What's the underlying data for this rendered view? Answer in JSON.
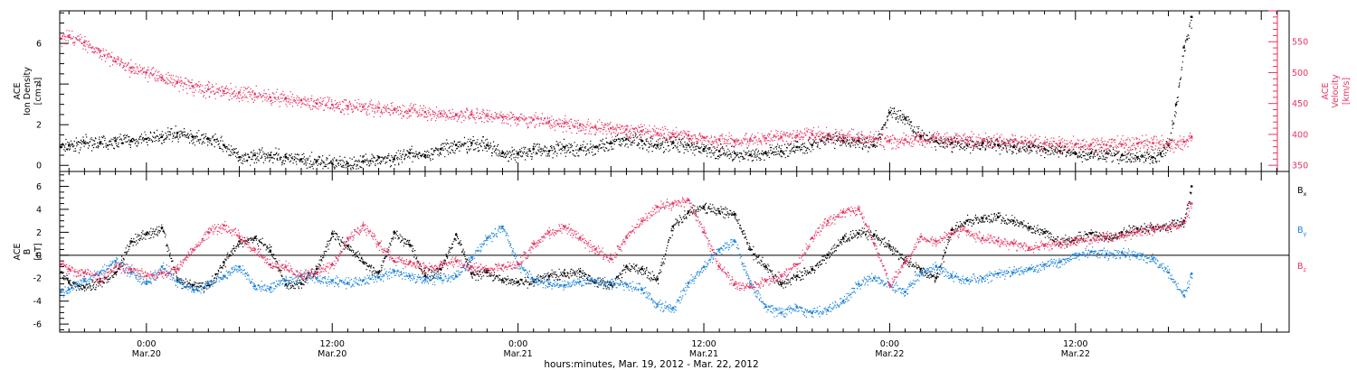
{
  "colors": {
    "black": "#000000",
    "pink": "#e8325f",
    "blue": "#1a82d8",
    "axis": "#000000"
  },
  "time_axis": {
    "tick_labels": [
      {
        "time": "0:00",
        "date": "Mar.20",
        "hour": 24
      },
      {
        "time": "12:00",
        "date": "Mar.20",
        "hour": 36
      },
      {
        "time": "0:00",
        "date": "Mar.21",
        "hour": 48
      },
      {
        "time": "12:00",
        "date": "Mar.21",
        "hour": 60
      },
      {
        "time": "0:00",
        "date": "Mar.22",
        "hour": 72
      },
      {
        "time": "12:00",
        "date": "Mar.22",
        "hour": 84
      }
    ],
    "xlabel": "hours:minutes, Mar. 19, 2012 - Mar. 22, 2012"
  },
  "chart_data": [
    {
      "type": "scatter",
      "panel": "plasma",
      "xlim": [
        18.4,
        97.8
      ],
      "left_axis": {
        "label_lines": [
          "ACE",
          "Ion Density"
        ],
        "unit": "[cm⁻³]",
        "ylim": [
          -0.3,
          7.6
        ],
        "ticks": [
          0,
          2,
          4,
          6
        ]
      },
      "right_axis": {
        "label_lines": [
          "ACE",
          "Velocity"
        ],
        "unit": "[km/s]",
        "ylim": [
          340,
          600
        ],
        "ticks": [
          350,
          400,
          450,
          500,
          550
        ]
      },
      "series": [
        {
          "axis": "left",
          "color": "black",
          "x": [
            18.5,
            19,
            20,
            21,
            22,
            23,
            24,
            25,
            26,
            27,
            28,
            29,
            30,
            31,
            32,
            33,
            34,
            35,
            36,
            37,
            38,
            39,
            40,
            41,
            42,
            43,
            44,
            45,
            46,
            47,
            48,
            49,
            50,
            51,
            52,
            53,
            54,
            55,
            56,
            57,
            58,
            59,
            60,
            61,
            62,
            63,
            64,
            65,
            66,
            67,
            68,
            69,
            70,
            71,
            72,
            73,
            74,
            75,
            76,
            77,
            78,
            79,
            80,
            81,
            82,
            83,
            84,
            85,
            86,
            87,
            88,
            89,
            89.5,
            90,
            90.5,
            91,
            91.5
          ],
          "y": [
            0.9,
            1.0,
            1.1,
            1.1,
            1.2,
            1.2,
            1.3,
            1.4,
            1.6,
            1.4,
            1.3,
            1.0,
            0.4,
            0.5,
            0.5,
            0.4,
            0.3,
            0.2,
            0.1,
            0.1,
            0.2,
            0.4,
            0.3,
            0.6,
            0.5,
            0.8,
            1.0,
            1.1,
            1.0,
            0.6,
            0.6,
            0.8,
            0.7,
            0.9,
            0.8,
            0.9,
            1.1,
            1.3,
            1.2,
            1.0,
            1.1,
            1.0,
            0.8,
            0.7,
            0.6,
            0.5,
            0.6,
            0.7,
            0.9,
            1.0,
            1.3,
            1.2,
            1.2,
            1.0,
            2.6,
            2.3,
            1.4,
            1.2,
            1.1,
            1.0,
            1.1,
            1.0,
            0.9,
            0.9,
            0.8,
            0.7,
            0.6,
            0.6,
            0.6,
            0.5,
            0.4,
            0.4,
            0.6,
            1.0,
            3.0,
            5.8,
            7.3
          ]
        },
        {
          "axis": "right",
          "color": "pink",
          "x": [
            18.5,
            19,
            20,
            21,
            22,
            23,
            24,
            25,
            26,
            27,
            28,
            29,
            30,
            31,
            32,
            33,
            34,
            35,
            36,
            37,
            38,
            39,
            40,
            41,
            42,
            43,
            44,
            45,
            46,
            47,
            48,
            49,
            50,
            51,
            52,
            53,
            54,
            55,
            56,
            57,
            58,
            59,
            60,
            61,
            62,
            63,
            64,
            65,
            66,
            67,
            68,
            69,
            70,
            71,
            72,
            73,
            74,
            75,
            76,
            77,
            78,
            79,
            80,
            81,
            82,
            83,
            84,
            85,
            86,
            87,
            88,
            89,
            90,
            91,
            91.5
          ],
          "y": [
            555,
            558,
            549,
            535,
            518,
            508,
            500,
            492,
            485,
            478,
            473,
            470,
            468,
            465,
            460,
            458,
            455,
            450,
            448,
            446,
            445,
            443,
            440,
            438,
            436,
            434,
            432,
            432,
            430,
            428,
            426,
            424,
            420,
            418,
            415,
            412,
            410,
            408,
            405,
            402,
            400,
            398,
            395,
            392,
            390,
            392,
            394,
            396,
            398,
            400,
            398,
            396,
            394,
            392,
            390,
            391,
            393,
            394,
            392,
            391,
            390,
            389,
            388,
            387,
            386,
            385,
            384,
            384,
            383,
            384,
            385,
            386,
            385,
            388,
            396
          ]
        }
      ]
    },
    {
      "type": "scatter",
      "panel": "magnetic-field",
      "xlim": [
        18.4,
        97.8
      ],
      "yaxis": {
        "label_lines": [
          "ACE",
          "B"
        ],
        "unit": "[nT]",
        "ylim": [
          -6.7,
          7.3
        ],
        "ticks": [
          -6,
          -4,
          -2,
          0,
          2,
          4,
          6
        ],
        "zero_line": true
      },
      "legend_placement": "right",
      "series": [
        {
          "name": "Bx",
          "color": "black",
          "x": [
            18.5,
            19,
            20,
            21,
            22,
            23,
            24,
            25,
            26,
            27,
            28,
            29,
            30,
            31,
            32,
            33,
            34,
            35,
            36,
            37,
            38,
            39,
            40,
            41,
            42,
            43,
            44,
            45,
            46,
            47,
            48,
            49,
            50,
            51,
            52,
            53,
            54,
            55,
            56,
            57,
            58,
            59,
            60,
            61,
            62,
            63,
            64,
            65,
            66,
            67,
            68,
            69,
            70,
            71,
            72,
            73,
            74,
            75,
            76,
            77,
            78,
            79,
            80,
            81,
            82,
            83,
            84,
            85,
            86,
            87,
            88,
            89,
            90,
            91,
            91.5
          ],
          "y": [
            -1.5,
            -2.4,
            -2.8,
            -2.3,
            -1.5,
            1.2,
            1.9,
            2.4,
            -2.2,
            -2.6,
            -2.6,
            -0.6,
            1.2,
            1.5,
            0.4,
            -2.6,
            -2.5,
            -1.2,
            1.9,
            0.8,
            -0.6,
            -1.5,
            2.0,
            0.9,
            -1.8,
            -1.2,
            1.8,
            -1.6,
            -1.5,
            -2.2,
            -2.3,
            -2.3,
            -1.8,
            -1.6,
            -1.4,
            -2.4,
            -2.6,
            -1.0,
            -1.2,
            -2.1,
            2.5,
            3.8,
            4.2,
            3.8,
            3.6,
            0.5,
            -1.0,
            -2.5,
            -1.8,
            -1.2,
            0.0,
            1.5,
            1.9,
            1.8,
            0.8,
            -0.5,
            -1.2,
            -2.0,
            2.2,
            3.0,
            3.2,
            3.3,
            3.0,
            2.4,
            2.0,
            1.1,
            1.5,
            1.9,
            1.5,
            2.0,
            2.3,
            2.4,
            2.5,
            3.0,
            6.0
          ]
        },
        {
          "name": "By",
          "color": "blue",
          "x": [
            18.5,
            19,
            20,
            21,
            22,
            23,
            24,
            25,
            26,
            27,
            28,
            29,
            30,
            31,
            32,
            33,
            34,
            35,
            36,
            37,
            38,
            39,
            40,
            41,
            42,
            43,
            44,
            45,
            46,
            47,
            48,
            49,
            50,
            51,
            52,
            53,
            54,
            55,
            56,
            57,
            58,
            59,
            60,
            61,
            62,
            63,
            64,
            65,
            66,
            67,
            68,
            69,
            70,
            71,
            72,
            73,
            74,
            75,
            76,
            77,
            78,
            79,
            80,
            81,
            82,
            83,
            84,
            85,
            86,
            87,
            88,
            89,
            90,
            91,
            91.5
          ],
          "y": [
            -3.2,
            -3.0,
            -2.2,
            -1.5,
            -0.5,
            -1.5,
            -2.5,
            -1.0,
            -2.3,
            -3.0,
            -2.5,
            -1.8,
            -1.0,
            -2.7,
            -2.8,
            -2.2,
            -1.8,
            -2.0,
            -2.2,
            -2.4,
            -2.2,
            -1.9,
            -1.4,
            -1.8,
            -2.1,
            -2.0,
            -1.8,
            -0.2,
            1.5,
            2.5,
            -0.8,
            -2.1,
            -2.5,
            -2.6,
            -2.3,
            -2.2,
            -2.4,
            -2.5,
            -3.0,
            -4.3,
            -4.6,
            -2.4,
            -1.0,
            0.5,
            1.2,
            -2.5,
            -4.5,
            -5.0,
            -4.5,
            -5.0,
            -4.8,
            -4.0,
            -2.5,
            -2.0,
            -2.6,
            -3.2,
            -1.5,
            -1.0,
            -1.8,
            -2.2,
            -2.0,
            -1.6,
            -1.5,
            -1.2,
            -0.8,
            -0.6,
            0.0,
            0.3,
            0.1,
            0.2,
            0.0,
            -0.3,
            -1.5,
            -3.5,
            -1.6
          ]
        },
        {
          "name": "Bz",
          "color": "pink",
          "x": [
            18.5,
            19,
            20,
            21,
            22,
            23,
            24,
            25,
            26,
            27,
            28,
            29,
            30,
            31,
            32,
            33,
            34,
            35,
            36,
            37,
            38,
            39,
            40,
            41,
            42,
            43,
            44,
            45,
            46,
            47,
            48,
            49,
            50,
            51,
            52,
            53,
            54,
            55,
            56,
            57,
            58,
            59,
            60,
            61,
            62,
            63,
            64,
            65,
            66,
            67,
            68,
            69,
            70,
            71,
            72,
            73,
            74,
            75,
            76,
            77,
            78,
            79,
            80,
            81,
            82,
            83,
            84,
            85,
            86,
            87,
            88,
            89,
            90,
            91,
            91.5
          ],
          "y": [
            -0.8,
            -1.2,
            -1.5,
            -2.1,
            -1.0,
            -1.2,
            -1.8,
            -1.5,
            -1.2,
            0.5,
            2.0,
            2.6,
            1.6,
            0.5,
            -0.8,
            -1.0,
            -1.7,
            -1.5,
            -0.8,
            1.5,
            2.6,
            1.0,
            -0.5,
            -0.6,
            -1.1,
            -0.8,
            -0.5,
            -1.0,
            -1.2,
            -0.9,
            -0.8,
            1.0,
            2.0,
            2.5,
            1.5,
            0.5,
            -0.3,
            1.6,
            3.0,
            4.2,
            4.5,
            4.8,
            2.0,
            -1.0,
            -2.5,
            -2.8,
            -2.2,
            -1.8,
            -0.8,
            1.5,
            3.0,
            3.8,
            4.0,
            1.0,
            -2.6,
            -0.5,
            1.6,
            1.2,
            1.9,
            2.1,
            1.5,
            1.2,
            1.0,
            0.6,
            0.9,
            1.1,
            1.4,
            1.3,
            1.6,
            1.8,
            2.0,
            2.3,
            2.5,
            2.8,
            4.5
          ]
        }
      ]
    }
  ]
}
